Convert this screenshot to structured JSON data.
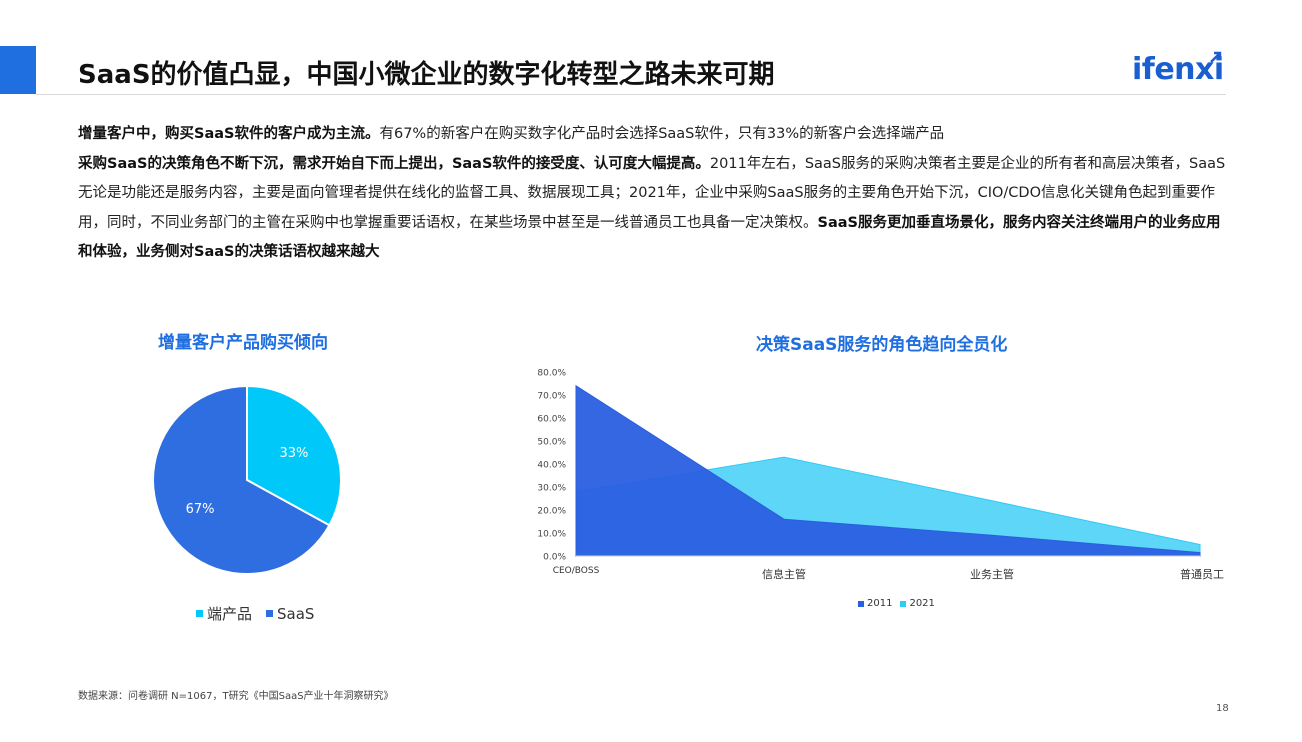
{
  "header": {
    "title": "SaaS的价值凸显，中国小微企业的数字化转型之路未来可期",
    "logo": "ifenxi"
  },
  "body": {
    "p1_bold": "增量客户中，购买SaaS软件的客户成为主流。",
    "p1_text": "有67%的新客户在购买数字化产品时会选择SaaS软件，只有33%的新客户会选择端产品",
    "p2_bold1": "采购SaaS的决策角色不断下沉，需求开始自下而上提出，SaaS软件的接受度、认可度大幅提高。",
    "p2_text1": "2011年左右，SaaS服务的采购决策者主要是企业的所有者和高层决策者，SaaS无论是功能还是服务内容，主要是面向管理者提供在线化的监督工具、数据展现工具；2021年，企业中采购SaaS服务的主要角色开始下沉，CIO/CDO信息化关键角色起到重要作用，同时，不同业务部门的主管在采购中也掌握重要话语权，在某些场景中甚至是一线普通员工也具备一定决策权。",
    "p2_bold2": "SaaS服务更加垂直场景化，服务内容关注终端用户的业务应用和体验，业务侧对SaaS的决策话语权越来越大"
  },
  "chart_data": [
    {
      "type": "pie",
      "title": "增量客户产品购买倾向",
      "slices": [
        {
          "name": "端产品",
          "value": 33,
          "label": "33%",
          "color": "#00c8f8"
        },
        {
          "name": "SaaS",
          "value": 67,
          "label": "67%",
          "color": "#2f6ee0"
        }
      ],
      "legend_position": "bottom"
    },
    {
      "type": "area",
      "title": "决策SaaS服务的角色趋向全员化",
      "categories": [
        "CEO/BOSS",
        "信息主管",
        "业务主管",
        "普通员工"
      ],
      "y_ticks": [
        "0.0%",
        "10.0%",
        "20.0%",
        "30.0%",
        "40.0%",
        "50.0%",
        "60.0%",
        "70.0%",
        "80.0%"
      ],
      "ylim": [
        0,
        80
      ],
      "series": [
        {
          "name": "2011",
          "values": [
            74,
            16,
            9,
            1.5
          ],
          "color": "#2a5fe0"
        },
        {
          "name": "2021",
          "values": [
            28,
            43,
            24,
            5
          ],
          "color": "#2fcbf5"
        }
      ],
      "grid": false,
      "legend_position": "bottom"
    }
  ],
  "footer": {
    "source": "数据来源：问卷调研 N=1067，T研究《中国SaaS产业十年洞察研究》",
    "page_number": "18"
  }
}
